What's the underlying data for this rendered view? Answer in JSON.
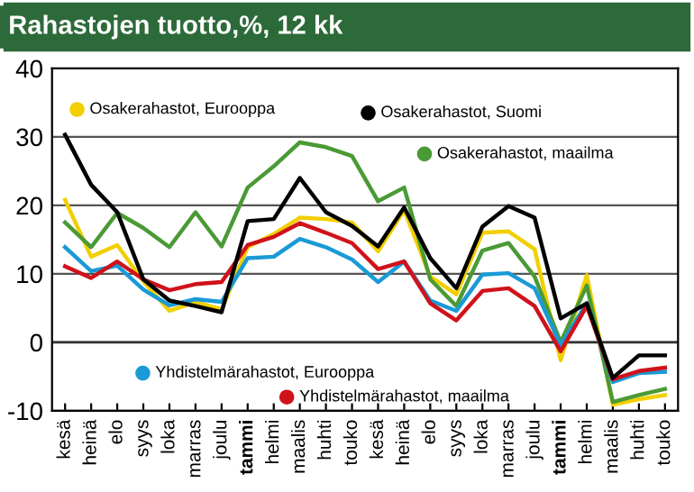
{
  "chart_data": {
    "type": "line",
    "title": "Rahastojen tuotto,%, 12 kk",
    "categories": [
      "kesä",
      "heinä",
      "elo",
      "syys",
      "loka",
      "marras",
      "joulu",
      "tammi",
      "helmi",
      "maalis",
      "huhti",
      "touko",
      "kesä",
      "heinä",
      "elo",
      "syys",
      "loka",
      "marras",
      "joulu",
      "tammi",
      "helmi",
      "maalis",
      "huhti",
      "touko"
    ],
    "series": [
      {
        "name": "Osakerahastot, Eurooppa",
        "color": "#f2cf00",
        "values": [
          20.8,
          12.5,
          14.2,
          8.9,
          4.6,
          5.9,
          4.8,
          13.9,
          15.8,
          18.2,
          18,
          17.5,
          13.3,
          19.3,
          9.6,
          7,
          16,
          16.2,
          13.6,
          -2.6,
          9.8,
          -9.1,
          -8.3,
          -7.7
        ]
      },
      {
        "name": "Osakerahastot, Suomi",
        "color": "#000000",
        "values": [
          30.3,
          23,
          19,
          9.2,
          6.1,
          5.3,
          4.4,
          17.7,
          18,
          24,
          19,
          17,
          14,
          19.7,
          12.3,
          7.9,
          16.9,
          19.9,
          18.2,
          3.5,
          5.7,
          -5.2,
          -1.9,
          -1.9
        ]
      },
      {
        "name": "Osakerahastot, maailma",
        "color": "#4a9a35",
        "values": [
          17.5,
          13.9,
          18.9,
          16.7,
          13.9,
          19,
          14,
          22.6,
          25.7,
          29.2,
          28.5,
          27.2,
          20.6,
          22.6,
          9.2,
          5.3,
          13.4,
          14.5,
          9.6,
          0,
          8.3,
          -8.7,
          -7.7,
          -6.8
        ]
      },
      {
        "name": "Yhdistelmärahastot, Eurooppa",
        "color": "#1a9ad6",
        "values": [
          13.9,
          10.4,
          11.2,
          7.7,
          5.4,
          6.3,
          5.9,
          12.3,
          12.5,
          15.1,
          13.9,
          12.1,
          8.8,
          11.8,
          6.1,
          4.6,
          9.9,
          10.1,
          7.9,
          -0.4,
          5.7,
          -5.8,
          -4.5,
          -4.3
        ]
      },
      {
        "name": "Yhdistelmärahastot, maailma",
        "color": "#d0121b",
        "values": [
          11.1,
          9.4,
          11.8,
          9.2,
          7.6,
          8.5,
          8.8,
          14.2,
          15.4,
          17.4,
          16,
          14.5,
          10.7,
          11.8,
          5.7,
          3.2,
          7.5,
          7.9,
          5.3,
          -1.3,
          5.3,
          -5.4,
          -4.2,
          -3.7
        ]
      }
    ],
    "ylim": [
      -10,
      40
    ],
    "yticks": [
      -10,
      0,
      10,
      20,
      30,
      40
    ],
    "grid": "y",
    "legend": "bottom left",
    "marker": "none",
    "line_style": "solid"
  }
}
